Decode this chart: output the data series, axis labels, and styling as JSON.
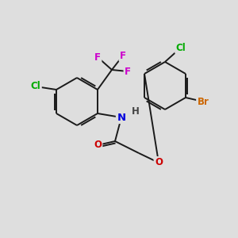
{
  "background_color": "#dedede",
  "bond_color": "#1a1a1a",
  "atom_colors": {
    "F": "#cc00cc",
    "Cl": "#00aa00",
    "N": "#0000dd",
    "O": "#cc0000",
    "Br": "#cc6600",
    "H": "#444444",
    "C": "#1a1a1a"
  },
  "figsize": [
    3.0,
    3.0
  ],
  "dpi": 100
}
